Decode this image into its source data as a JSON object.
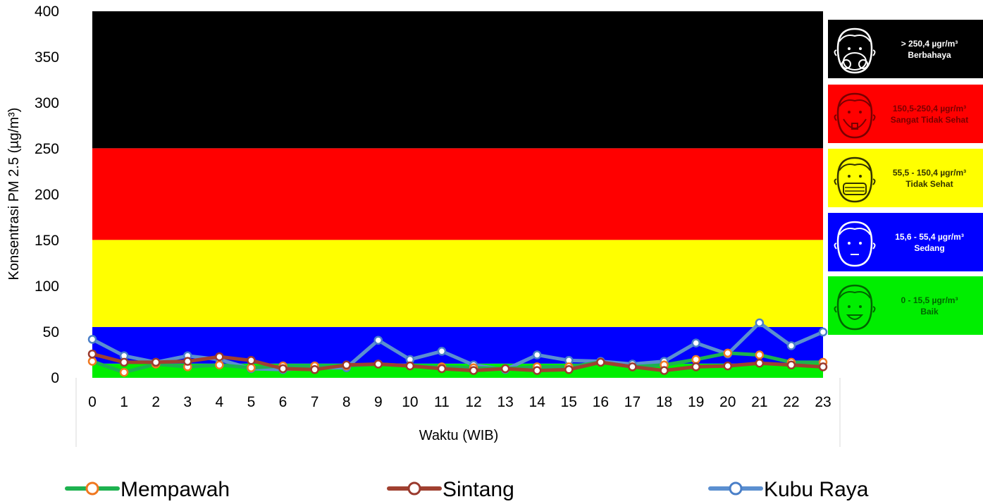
{
  "chart_data": {
    "type": "line",
    "title": "",
    "xlabel": "Waktu (WIB)",
    "ylabel": "Konsentrasi PM 2.5 (µg/m³)",
    "ylim": [
      0,
      400
    ],
    "yticks": [
      "0",
      "50",
      "100",
      "150",
      "200",
      "250",
      "300",
      "350",
      "400"
    ],
    "categories": [
      "0",
      "1",
      "2",
      "3",
      "4",
      "5",
      "6",
      "7",
      "8",
      "9",
      "10",
      "11",
      "12",
      "13",
      "14",
      "15",
      "16",
      "17",
      "18",
      "19",
      "20",
      "21",
      "22",
      "23"
    ],
    "bands": [
      {
        "from": 0,
        "to": 15.5,
        "color": "#00ee00"
      },
      {
        "from": 15.5,
        "to": 55.5,
        "color": "#0000ff"
      },
      {
        "from": 55.5,
        "to": 150.5,
        "color": "#ffff00"
      },
      {
        "from": 150.5,
        "to": 250.5,
        "color": "#ff0000"
      },
      {
        "from": 250.5,
        "to": 400,
        "color": "#000000"
      }
    ],
    "series": [
      {
        "name": "Kubu Raya",
        "line_color": "#5b8fd0",
        "marker_color": "#4a7fc8",
        "values": [
          42,
          24,
          17,
          24,
          20,
          10,
          9,
          11,
          11,
          41,
          20,
          29,
          14,
          9,
          25,
          19,
          18,
          15,
          18,
          38,
          26,
          60,
          35,
          50
        ]
      },
      {
        "name": "Mempawah",
        "line_color": "#1db24f",
        "marker_color": "#f07820",
        "values": [
          18,
          6,
          15,
          12,
          14,
          11,
          13,
          13,
          13,
          15,
          13,
          12,
          11,
          10,
          12,
          12,
          17,
          12,
          14,
          20,
          27,
          25,
          17,
          17
        ]
      },
      {
        "name": "Sintang",
        "line_color": "#a04030",
        "marker_color": "#9a3a2e",
        "values": [
          26,
          17,
          17,
          18,
          23,
          19,
          10,
          9,
          14,
          15,
          13,
          10,
          8,
          10,
          8,
          9,
          17,
          12,
          8,
          12,
          13,
          16,
          14,
          12
        ]
      }
    ]
  },
  "legend": [
    {
      "label": "Mempawah"
    },
    {
      "label": "Sintang"
    },
    {
      "label": "Kubu Raya"
    }
  ],
  "categories_panel": [
    {
      "range": "> 250,4 µgr/m³",
      "label": "Berbahaya",
      "bg": "#000000",
      "fg": "#ffffff",
      "icon": "gas-mask-face-icon"
    },
    {
      "range": "150,5-250,4 µgr/m³",
      "label": "Sangat Tidak Sehat",
      "bg": "#ff0000",
      "fg": "#7a0000",
      "icon": "mask-face-icon"
    },
    {
      "range": "55,5 - 150,4 µgr/m³",
      "label": "Tidak Sehat",
      "bg": "#ffff00",
      "fg": "#333300",
      "icon": "surgical-mask-face-icon"
    },
    {
      "range": "15,6 - 55,4 µgr/m³",
      "label": "Sedang",
      "bg": "#0000ff",
      "fg": "#ffffff",
      "icon": "neutral-face-icon"
    },
    {
      "range": "0 - 15,5 µgr/m³",
      "label": "Baik",
      "bg": "#00ee00",
      "fg": "#006600",
      "icon": "smile-face-icon"
    }
  ]
}
